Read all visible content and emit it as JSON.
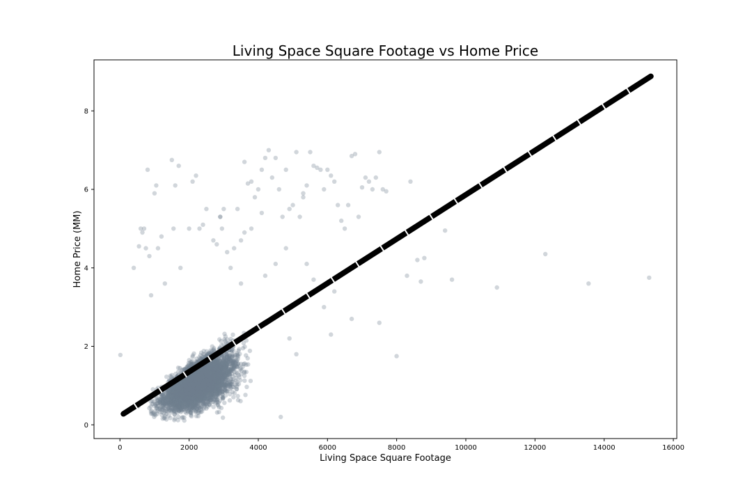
{
  "chart_data": {
    "type": "scatter",
    "title": "Living Space Square Footage vs Home Price",
    "xlabel": "Living Space Square Footage",
    "ylabel": "Home Price (MM)",
    "xlim": [
      -750,
      16100
    ],
    "ylim": [
      -0.35,
      9.3
    ],
    "xticks": [
      0,
      2000,
      4000,
      6000,
      8000,
      10000,
      12000,
      14000,
      16000
    ],
    "yticks": [
      0,
      2,
      4,
      6,
      8
    ],
    "grid": false,
    "legend": "none",
    "colors": {
      "points": "#708090",
      "fit_line": "#000000",
      "fit_dash_gap": "#ffffff"
    },
    "fit_line": {
      "x": [
        100,
        15350
      ],
      "y": [
        0.28,
        8.88
      ]
    },
    "bulk_sample": {
      "count": 4500,
      "x_center": 2300,
      "x_spread": 850,
      "slope_mm_per_sqft": 0.00042,
      "intercept": 0.1,
      "y_spread": 0.45
    },
    "series": [
      {
        "x": [
          13,
          400,
          550,
          600,
          650,
          700,
          750,
          800,
          850,
          900,
          1000,
          1050,
          1100,
          1200,
          1300,
          1500,
          1550,
          1600,
          1700,
          1750,
          2000,
          2100,
          2200,
          2300,
          2400,
          2500,
          2700,
          2800,
          2900,
          3000,
          3100,
          3200,
          3300,
          3400,
          3500,
          3600,
          3700,
          3800,
          3900,
          4000,
          4100,
          4200,
          4300,
          4400,
          4500,
          4600,
          4700,
          4800,
          4900,
          5000,
          5100,
          5200,
          5300,
          5400,
          5500,
          5600,
          5700,
          5800,
          5900,
          6000,
          6100,
          6200,
          6300,
          6400,
          6500,
          6600,
          6700,
          6800,
          6900,
          7000,
          7100,
          7200,
          7300,
          7400,
          7500,
          7600,
          7700,
          8000,
          8300,
          8400,
          8600,
          8700,
          8800,
          9400,
          9600,
          10900,
          12300,
          13550,
          15300,
          5300,
          4100,
          3800,
          3600,
          2900,
          2950,
          4500,
          3500,
          5600,
          6200,
          4800,
          4200,
          5400,
          6700,
          7500,
          5900,
          6100,
          4900,
          5100,
          4650
        ],
        "y": [
          1.78,
          4.0,
          4.55,
          5.0,
          4.9,
          5.0,
          4.5,
          6.5,
          4.3,
          3.3,
          5.9,
          6.1,
          4.5,
          4.8,
          3.6,
          6.75,
          5.0,
          6.1,
          6.6,
          4.0,
          5.0,
          6.2,
          6.35,
          5.0,
          5.1,
          5.5,
          4.7,
          4.6,
          5.3,
          5.5,
          4.4,
          4.0,
          4.5,
          5.5,
          4.7,
          6.7,
          6.15,
          6.2,
          5.8,
          6.0,
          6.5,
          6.8,
          7.0,
          6.3,
          6.8,
          6.0,
          5.3,
          6.5,
          5.5,
          5.6,
          6.95,
          5.3,
          5.8,
          6.1,
          6.95,
          6.6,
          6.55,
          6.5,
          6.0,
          6.5,
          6.35,
          6.2,
          5.6,
          5.2,
          5.0,
          5.6,
          6.85,
          6.9,
          5.3,
          6.05,
          6.3,
          6.2,
          6.0,
          6.3,
          6.95,
          6.0,
          5.95,
          1.75,
          3.8,
          6.2,
          4.2,
          3.65,
          4.25,
          4.95,
          3.7,
          3.5,
          4.35,
          3.6,
          3.75,
          5.9,
          5.4,
          5.0,
          4.9,
          5.3,
          5.0,
          4.1,
          3.6,
          3.7,
          3.4,
          4.5,
          3.8,
          4.1,
          2.7,
          2.6,
          3.0,
          2.3,
          2.2,
          1.8,
          0.2
        ]
      }
    ]
  }
}
